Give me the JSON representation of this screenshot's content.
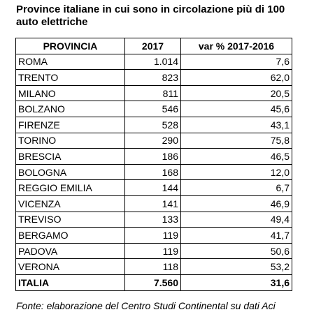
{
  "title": "Province italiane in cui sono in circolazione più di 100 auto elettriche",
  "table": {
    "headers": [
      "PROVINCIA",
      "2017",
      "var % 2017-2016"
    ],
    "rows": [
      [
        "ROMA",
        "1.014",
        "7,6"
      ],
      [
        "TRENTO",
        "823",
        "62,0"
      ],
      [
        "MILANO",
        "811",
        "20,5"
      ],
      [
        "BOLZANO",
        "546",
        "45,6"
      ],
      [
        "FIRENZE",
        "528",
        "43,1"
      ],
      [
        "TORINO",
        "290",
        "75,8"
      ],
      [
        "BRESCIA",
        "186",
        "46,5"
      ],
      [
        "BOLOGNA",
        "168",
        "12,0"
      ],
      [
        "REGGIO EMILIA",
        "144",
        "6,7"
      ],
      [
        "VICENZA",
        "141",
        "46,9"
      ],
      [
        "TREVISO",
        "133",
        "49,4"
      ],
      [
        "BERGAMO",
        "119",
        "41,7"
      ],
      [
        "PADOVA",
        "119",
        "50,6"
      ],
      [
        "VERONA",
        "118",
        "53,2"
      ]
    ],
    "total": [
      "ITALIA",
      "7.560",
      "31,6"
    ]
  },
  "source": "Fonte: elaborazione del Centro Studi Continental su dati Aci"
}
